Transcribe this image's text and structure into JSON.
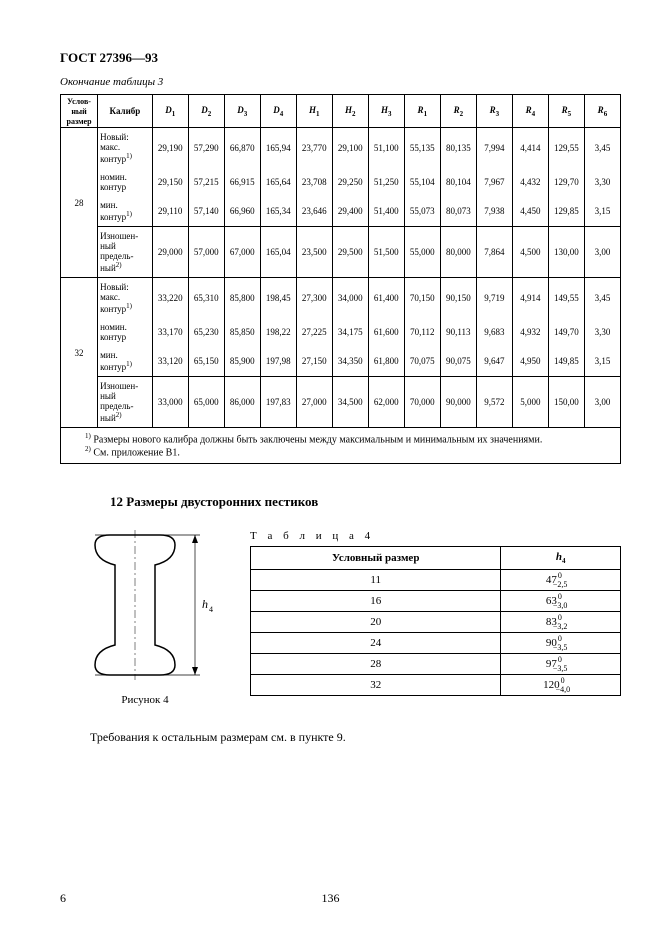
{
  "header": "ГОСТ 27396—93",
  "tableCaption": "Окончание таблицы 3",
  "columns": [
    "Услов-\nный\nразмер",
    "Калибр",
    "D₁",
    "D₂",
    "D₃",
    "D₄",
    "H₁",
    "H₂",
    "H₃",
    "R₁",
    "R₂",
    "R₃",
    "R₄",
    "R₅",
    "R₆"
  ],
  "groups": [
    {
      "size": "28",
      "rows": [
        {
          "label": "Новый:\nмакс.\nконтур¹⁾",
          "vals": [
            "29,190",
            "57,290",
            "66,870",
            "165,94",
            "23,770",
            "29,100",
            "51,100",
            "55,135",
            "80,135",
            "7,994",
            "4,414",
            "129,55",
            "3,45"
          ]
        },
        {
          "label": "номин.\nконтур",
          "vals": [
            "29,150",
            "57,215",
            "66,915",
            "165,64",
            "23,708",
            "29,250",
            "51,250",
            "55,104",
            "80,104",
            "7,967",
            "4,432",
            "129,70",
            "3,30"
          ]
        },
        {
          "label": "мин.\nконтур¹⁾",
          "vals": [
            "29,110",
            "57,140",
            "66,960",
            "165,34",
            "23,646",
            "29,400",
            "51,400",
            "55,073",
            "80,073",
            "7,938",
            "4,450",
            "129,85",
            "3,15"
          ]
        }
      ],
      "worn": {
        "label": "Изношен-\nный\nпредель-\nный²⁾",
        "vals": [
          "29,000",
          "57,000",
          "67,000",
          "165,04",
          "23,500",
          "29,500",
          "51,500",
          "55,000",
          "80,000",
          "7,864",
          "4,500",
          "130,00",
          "3,00"
        ]
      }
    },
    {
      "size": "32",
      "rows": [
        {
          "label": "Новый:\nмакс.\nконтур¹⁾",
          "vals": [
            "33,220",
            "65,310",
            "85,800",
            "198,45",
            "27,300",
            "34,000",
            "61,400",
            "70,150",
            "90,150",
            "9,719",
            "4,914",
            "149,55",
            "3,45"
          ]
        },
        {
          "label": "номин.\nконтур",
          "vals": [
            "33,170",
            "65,230",
            "85,850",
            "198,22",
            "27,225",
            "34,175",
            "61,600",
            "70,112",
            "90,113",
            "9,683",
            "4,932",
            "149,70",
            "3,30"
          ]
        },
        {
          "label": "мин.\nконтур¹⁾",
          "vals": [
            "33,120",
            "65,150",
            "85,900",
            "197,98",
            "27,150",
            "34,350",
            "61,800",
            "70,075",
            "90,075",
            "9,647",
            "4,950",
            "149,85",
            "3,15"
          ]
        }
      ],
      "worn": {
        "label": "Изношен-\nный\nпредель-\nный²⁾",
        "vals": [
          "33,000",
          "65,000",
          "86,000",
          "197,83",
          "27,000",
          "34,500",
          "62,000",
          "70,000",
          "90,000",
          "9,572",
          "5,000",
          "150,00",
          "3,00"
        ]
      }
    }
  ],
  "footnote1": "¹⁾ Размеры нового калибра должны быть заключены между максимальным и минимальным их значениями.",
  "footnote2": "²⁾ См. приложение В1.",
  "sectionTitle": "12 Размеры двусторонних пестиков",
  "figureCaption": "Рисунок 4",
  "figureDimLabel": "h₄",
  "table4Title": "Т а б л и ц а  4",
  "table4": {
    "cols": [
      "Условный размер",
      "h₄"
    ],
    "rowsSize": [
      "11",
      "16",
      "20",
      "24",
      "28",
      "32"
    ],
    "rowsH": [
      {
        "base": "47",
        "up": "0",
        "dn": "−2,5"
      },
      {
        "base": "63",
        "up": "0",
        "dn": "−3,0"
      },
      {
        "base": "83",
        "up": "0",
        "dn": "−3,2"
      },
      {
        "base": "90",
        "up": "0",
        "dn": "−3,5"
      },
      {
        "base": "97",
        "up": "0",
        "dn": "−3,5"
      },
      {
        "base": "120",
        "up": "0",
        "dn": "−4,0"
      }
    ]
  },
  "reqLine": "Требования к остальным размерам см. в пункте 9.",
  "pageLeft": "6",
  "pageCenter": "136"
}
